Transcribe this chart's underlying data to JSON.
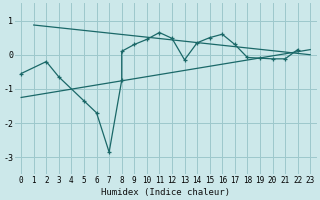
{
  "xlabel": "Humidex (Indice chaleur)",
  "bg_color": "#cce8ea",
  "grid_color": "#9dc8cc",
  "line_color": "#1a6868",
  "xlim": [
    -0.5,
    23.5
  ],
  "ylim": [
    -3.5,
    1.5
  ],
  "yticks": [
    -3,
    -2,
    -1,
    0,
    1
  ],
  "xticks": [
    0,
    1,
    2,
    3,
    4,
    5,
    6,
    7,
    8,
    9,
    10,
    11,
    12,
    13,
    14,
    15,
    16,
    17,
    18,
    19,
    20,
    21,
    22,
    23
  ],
  "series": [
    [
      0,
      -0.55
    ],
    [
      2,
      -0.2
    ],
    [
      3,
      -0.65
    ],
    [
      5,
      -1.35
    ],
    [
      6,
      -1.7
    ],
    [
      7,
      -2.85
    ],
    [
      8,
      -0.75
    ],
    [
      8,
      0.1
    ],
    [
      9,
      0.3
    ],
    [
      10,
      0.45
    ],
    [
      11,
      0.65
    ],
    [
      12,
      0.48
    ],
    [
      13,
      -0.15
    ],
    [
      14,
      0.35
    ],
    [
      15,
      0.5
    ],
    [
      16,
      0.6
    ],
    [
      17,
      0.3
    ],
    [
      18,
      -0.08
    ],
    [
      19,
      -0.1
    ],
    [
      20,
      -0.12
    ],
    [
      21,
      -0.12
    ],
    [
      22,
      0.15
    ]
  ],
  "upper_trend_x": [
    1,
    23
  ],
  "upper_trend_y": [
    0.87,
    0.0
  ],
  "lower_trend_x": [
    0,
    23
  ],
  "lower_trend_y": [
    -1.25,
    0.15
  ],
  "top_point_x": 1,
  "top_point_y": 0.87
}
